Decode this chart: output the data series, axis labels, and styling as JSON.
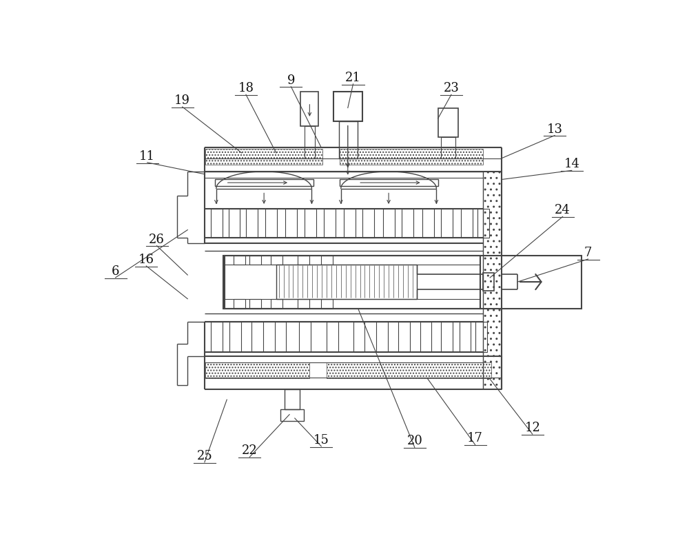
{
  "bg": "#ffffff",
  "lc": "#444444",
  "lc_thin": "#666666",
  "fs": 13,
  "fw": 10.0,
  "fh": 7.91,
  "dpi": 100
}
